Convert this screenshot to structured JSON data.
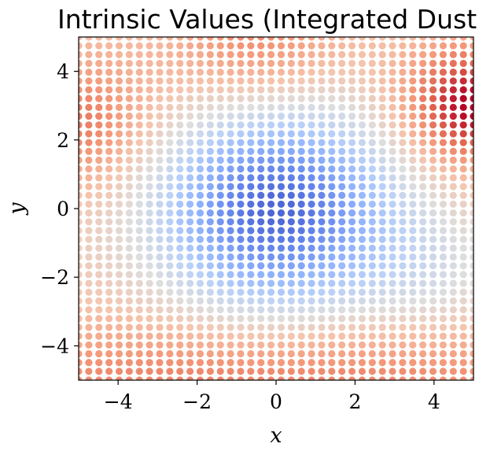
{
  "chart_data": {
    "type": "scatter",
    "title": "Intrinsic Values (Integrated Dust)",
    "xlabel": "x",
    "ylabel": "y",
    "xlim": [
      -5,
      5
    ],
    "ylim": [
      -5,
      5
    ],
    "x_ticks": [
      -4,
      -2,
      0,
      2,
      4
    ],
    "y_ticks": [
      -4,
      -2,
      0,
      2,
      4
    ],
    "x_tick_labels": [
      "−4",
      "−2",
      "0",
      "2",
      "4"
    ],
    "y_tick_labels": [
      "−4",
      "−2",
      "0",
      "2",
      "4"
    ],
    "grid": false,
    "legend": "none",
    "colormap": "coolwarm",
    "grid_points": {
      "n": 40,
      "start": -5,
      "end": 5
    },
    "value_range": [
      0,
      1
    ],
    "description_of_values": "colour value per grid point, low at origin (blue) rising toward edges, highest near (5, 3) (red)"
  }
}
